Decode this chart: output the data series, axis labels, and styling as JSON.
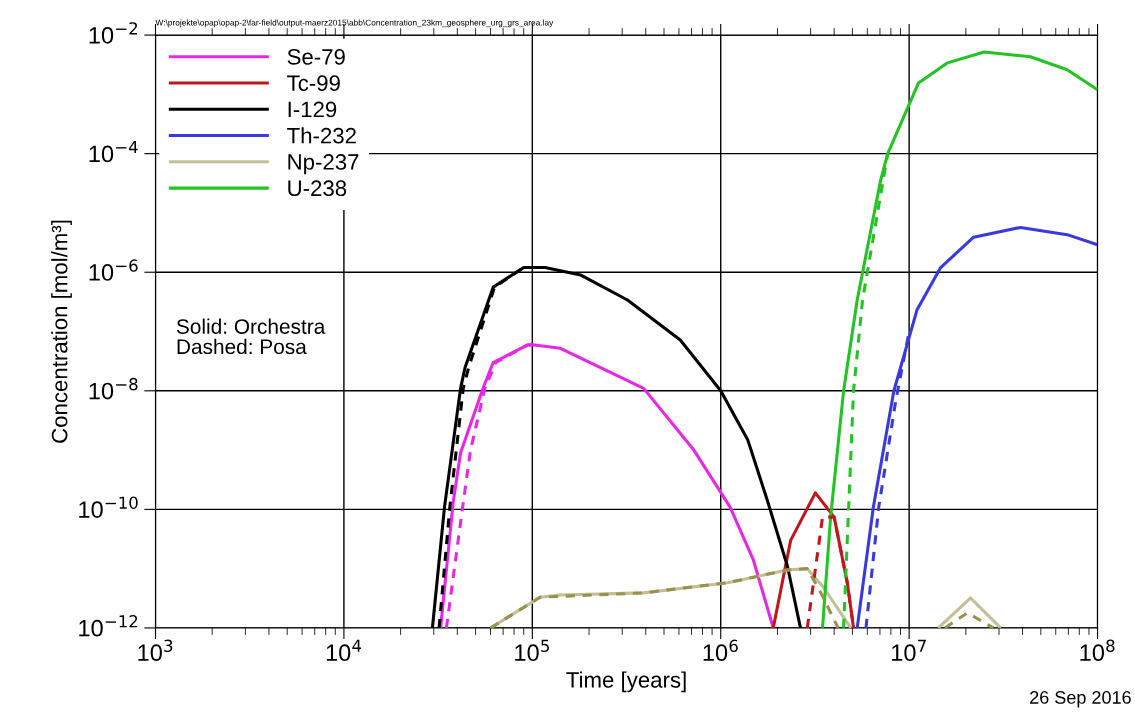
{
  "chart_data": {
    "type": "line",
    "xlabel": "Time [years]",
    "ylabel": "Concentration [mol/m³]",
    "log": "xy",
    "grid": true,
    "legend": "top left",
    "marker": "none",
    "xlim": [
      1000,
      100000000
    ],
    "ylim": [
      1e-12,
      0.01
    ],
    "xticks": [
      {
        "value": 1000,
        "label": "10$^{3}$"
      },
      {
        "value": 10000,
        "label": "10$^{4}$"
      },
      {
        "value": 100000,
        "label": "10$^{5}$"
      },
      {
        "value": 1000000,
        "label": "10$^{6}$"
      },
      {
        "value": 10000000,
        "label": "10$^{7}$"
      },
      {
        "value": 100000000,
        "label": "10$^{8}$"
      }
    ],
    "yticks": [
      {
        "value": 1e-12,
        "label": "10$^{−12}$"
      },
      {
        "value": 1e-10,
        "label": "10$^{−10}$"
      },
      {
        "value": 1e-08,
        "label": "10$^{−8}$"
      },
      {
        "value": 1e-06,
        "label": "10$^{−6}$"
      },
      {
        "value": 0.0001,
        "label": "10$^{−4}$"
      },
      {
        "value": 0.01,
        "label": "10$^{−2}$"
      }
    ],
    "annotations": [
      "W:\\projekte\\opap\\opap-2\\far-field\\output-maerz2015\\abb\\Concentration_23km_geosphere_urg_grs_area.lay",
      "Solid: Orchestra\nDashed: Posa",
      "26 Sep 2016"
    ],
    "series": [
      {
        "name": "Se-79",
        "color": "#e628e6",
        "line_style": "solid",
        "x": [
          32600,
          38000,
          41600,
          55000,
          62000,
          94000,
          100000,
          141000,
          390000,
          720000,
          1120000,
          1490000,
          1900000
        ],
        "values": [
          1e-12,
          1.3e-10,
          8.9e-10,
          1.15e-08,
          3e-08,
          5.9e-08,
          6e-08,
          5.2e-08,
          1.1e-08,
          1e-09,
          1.1e-10,
          1.4e-11,
          1e-12
        ]
      },
      {
        "name": "Tc-99",
        "color": "#c0161c",
        "line_style": "solid",
        "x": [
          1900000,
          2350000,
          3180000,
          4000000,
          4700000,
          5070000
        ],
        "values": [
          1e-12,
          3e-11,
          1.9e-10,
          7.4e-11,
          5.7e-12,
          1e-12
        ]
      },
      {
        "name": "I-129",
        "color": "#000000",
        "line_style": "solid",
        "x": [
          29500,
          34200,
          41600,
          44000,
          62000,
          90000,
          117000,
          180000,
          320000,
          610000,
          1000000,
          1390000,
          1770000,
          2260000,
          2650000
        ],
        "values": [
          1e-12,
          1.1e-10,
          1.1e-08,
          2.5e-08,
          5.6e-07,
          1.2e-06,
          1.2e-06,
          9e-07,
          3.4e-07,
          7.2e-08,
          1e-08,
          1.5e-09,
          1.4e-10,
          1.1e-11,
          1e-12
        ]
      },
      {
        "name": "Th-232",
        "color": "#3a3adc",
        "line_style": "solid",
        "x": [
          5300000,
          6460000,
          8300000,
          11000000,
          14700000,
          22000000,
          39000000,
          69000000,
          100000000
        ],
        "values": [
          1e-12,
          1.1e-10,
          1e-08,
          2.3e-07,
          1.2e-06,
          3.9e-06,
          5.7e-06,
          4.3e-06,
          2.9e-06
        ]
      },
      {
        "name": "Np-237",
        "color": "#c4be94",
        "line_style": "solid",
        "x": [
          60000,
          110000,
          140000,
          390000,
          1090000,
          2260000,
          2880000,
          3500000,
          4900000,
          10000000,
          14300000,
          21200000,
          30600000
        ],
        "values": [
          1e-12,
          3.3e-12,
          3.6e-12,
          3.9e-12,
          5.8e-12,
          9.5e-12,
          1e-11,
          4.9e-12,
          1e-12,
          null,
          1e-12,
          3.2e-12,
          1e-12
        ]
      },
      {
        "name": "U-238",
        "color": "#22c322",
        "line_style": "solid",
        "x": [
          3470000,
          3830000,
          4490000,
          5300000,
          7050000,
          7700000,
          11200000,
          16000000,
          25000000,
          44000000,
          69000000,
          100000000
        ],
        "values": [
          1e-12,
          7.4e-11,
          1e-08,
          3.4e-07,
          3.5e-05,
          0.0001,
          0.00155,
          0.0034,
          0.0052,
          0.0043,
          0.0026,
          0.0012
        ]
      },
      {
        "color": "#e628e6",
        "line_style": "dashed",
        "x": [
          35000,
          43000,
          47000,
          56000,
          64000,
          94000,
          100000
        ],
        "values": [
          1e-12,
          1.3e-10,
          1e-09,
          1.1e-08,
          3e-08,
          5.9e-08,
          6e-08
        ]
      },
      {
        "color": "#c0161c",
        "line_style": "dashed",
        "x": [
          2880000,
          3470000,
          4000000,
          4700000,
          5070000
        ],
        "values": [
          1e-12,
          7.4e-11,
          7.4e-11,
          5.7e-12,
          1e-12
        ]
      },
      {
        "color": "#000000",
        "line_style": "dashed",
        "x": [
          32000,
          36500,
          43000,
          46000,
          63000,
          90000
        ],
        "values": [
          1e-12,
          1.1e-10,
          1.1e-08,
          2.5e-08,
          5.6e-07,
          1.2e-06
        ]
      },
      {
        "color": "#3a3adc",
        "line_style": "dashed",
        "x": [
          5900000,
          6900000,
          8500000,
          10000000
        ],
        "values": [
          1e-12,
          1.1e-10,
          6.9e-09,
          1e-07
        ]
      },
      {
        "color": "#98924e",
        "line_style": "dashed",
        "x": [
          60000,
          110000,
          390000,
          1090000,
          2260000,
          2880000,
          3400000,
          4200000,
          10000000,
          15500000,
          20400000,
          28000000
        ],
        "values": [
          1e-12,
          3.3e-12,
          3.9e-12,
          5.8e-12,
          9.5e-12,
          1e-11,
          3.9e-12,
          1e-12,
          null,
          1e-12,
          1.8e-12,
          1e-12
        ]
      },
      {
        "color": "#22c322",
        "line_style": "dashed",
        "x": [
          4490000,
          5070000,
          5660000,
          7700000
        ],
        "values": [
          1e-12,
          1e-08,
          3.4e-07,
          0.0001
        ]
      }
    ]
  }
}
